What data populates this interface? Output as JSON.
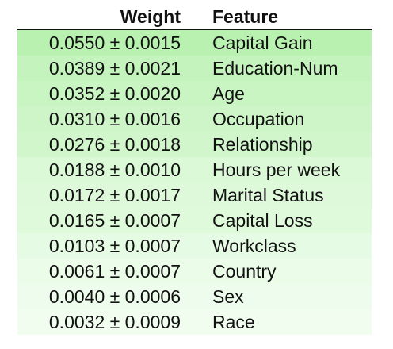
{
  "header": {
    "weight_label": "Weight",
    "feature_label": "Feature"
  },
  "rows": [
    {
      "weight": "0.0550 ± 0.0015",
      "feature": "Capital Gain",
      "bg": "#b9f2b0"
    },
    {
      "weight": "0.0389 ± 0.0021",
      "feature": "Education-Num",
      "bg": "#c5f3bd"
    },
    {
      "weight": "0.0352 ± 0.0020",
      "feature": "Age",
      "bg": "#c9f5c3"
    },
    {
      "weight": "0.0310 ± 0.0016",
      "feature": "Occupation",
      "bg": "#cdf5c8"
    },
    {
      "weight": "0.0276 ± 0.0018",
      "feature": "Relationship",
      "bg": "#d1f6cc"
    },
    {
      "weight": "0.0188 ± 0.0010",
      "feature": "Hours per week",
      "bg": "#dbf8d7"
    },
    {
      "weight": "0.0172 ± 0.0017",
      "feature": "Marital Status",
      "bg": "#ddf9d9"
    },
    {
      "weight": "0.0165 ± 0.0007",
      "feature": "Capital Loss",
      "bg": "#dff9db"
    },
    {
      "weight": "0.0103 ± 0.0007",
      "feature": "Workclass",
      "bg": "#e6fbe3"
    },
    {
      "weight": "0.0061 ± 0.0007",
      "feature": "Country",
      "bg": "#ebfce9"
    },
    {
      "weight": "0.0040 ± 0.0006",
      "feature": "Sex",
      "bg": "#eefced"
    },
    {
      "weight": "0.0032 ± 0.0009",
      "feature": "Race",
      "bg": "#f0fdef"
    }
  ]
}
